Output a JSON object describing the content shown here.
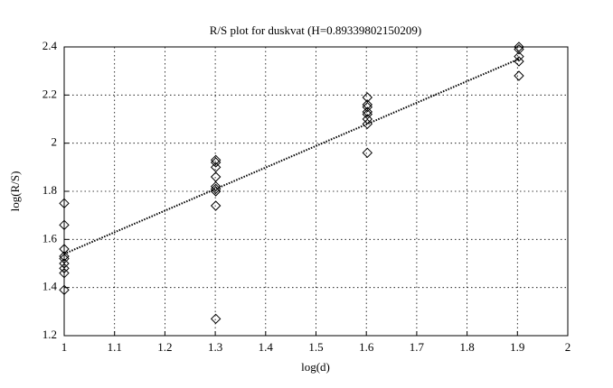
{
  "chart_data": {
    "type": "scatter",
    "title": "R/S plot for duskvat (H=0.89339802150209)",
    "x_label": "log(d)",
    "y_label": "log(R/S)",
    "xlim": [
      1,
      2
    ],
    "xticks": [
      1,
      1.1,
      1.2,
      1.3,
      1.4,
      1.5,
      1.6,
      1.7,
      1.8,
      1.9,
      2
    ],
    "ylim": [
      1.2,
      2.4
    ],
    "yticks": [
      1.2,
      1.4,
      1.6,
      1.8,
      2,
      2.2,
      2.4
    ],
    "grid": true,
    "series": [
      {
        "color": "#000000",
        "marker": "diamond",
        "x": [
          1,
          1,
          1,
          1,
          1,
          1,
          1,
          1,
          1,
          1.301,
          1.301,
          1.301,
          1.301,
          1.301,
          1.301,
          1.301,
          1.301,
          1.301,
          1.602,
          1.602,
          1.602,
          1.602,
          1.602,
          1.602,
          1.602,
          1.602,
          1.903,
          1.903,
          1.903,
          1.903,
          1.903
        ],
        "values": [
          1.75,
          1.66,
          1.56,
          1.53,
          1.52,
          1.5,
          1.48,
          1.46,
          1.39,
          1.93,
          1.92,
          1.9,
          1.86,
          1.82,
          1.81,
          1.8,
          1.74,
          1.27,
          2.19,
          2.16,
          2.15,
          2.13,
          2.12,
          2.1,
          2.08,
          1.96,
          2.4,
          2.39,
          2.36,
          2.34,
          2.28
        ]
      },
      {
        "color": "#000000",
        "line": "dotted",
        "x": [
          1,
          1.903
        ],
        "values": [
          1.54,
          2.35
        ]
      }
    ]
  }
}
